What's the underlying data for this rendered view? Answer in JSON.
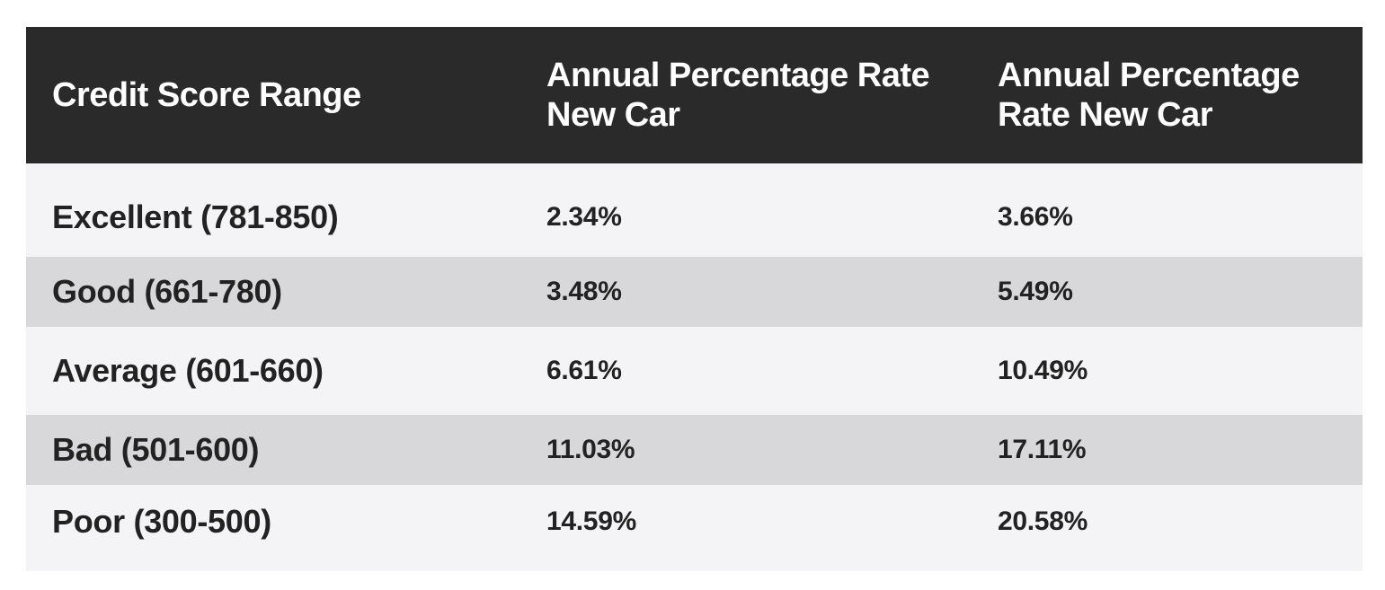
{
  "table": {
    "headers": [
      "Credit Score Range",
      "Annual Percentage Rate New Car",
      "Annual Percentage Rate New Car"
    ],
    "rows": [
      [
        "Excellent (781-850)",
        "2.34%",
        "3.66%"
      ],
      [
        "Good (661-780)",
        "3.48%",
        "5.49%"
      ],
      [
        "Average (601-660)",
        "6.61%",
        "10.49%"
      ],
      [
        "Bad (501-600)",
        "11.03%",
        "17.11%"
      ],
      [
        "Poor (300-500)",
        "14.59%",
        "20.58%"
      ]
    ]
  },
  "colors": {
    "header_bg": "#2a2a2a",
    "header_text": "#ffffff",
    "row_light": "#f4f4f6",
    "row_dark": "#d8d8da",
    "body_text": "#222222"
  }
}
